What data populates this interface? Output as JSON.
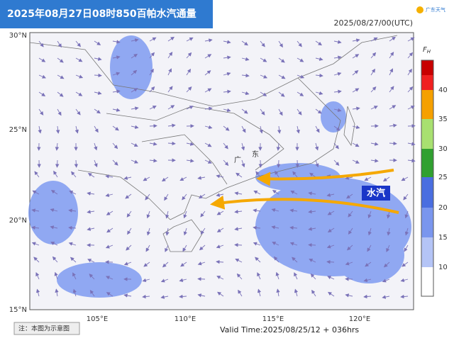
{
  "header": {
    "title": "2025年08月27日08时850百帕水汽通量",
    "timestamp": "2025/08/27/00(UTC)",
    "logo": "广东天气"
  },
  "map": {
    "lat_labels": [
      "30°N",
      "25°N",
      "20°N",
      "15°N"
    ],
    "lon_labels": [
      "105°E",
      "110°E",
      "115°E",
      "120°E"
    ],
    "annotations": {
      "water_vapor": "水汽",
      "province": [
        "广",
        "东"
      ]
    }
  },
  "colorbar": {
    "title": "F",
    "subscript": "H",
    "labels": [
      "40",
      "35",
      "30",
      "25",
      "20",
      "15",
      "10"
    ]
  },
  "footer": {
    "valid_time": "Valid Time:2025/08/25/12 + 036hrs",
    "note": "注：本图为示意图"
  }
}
